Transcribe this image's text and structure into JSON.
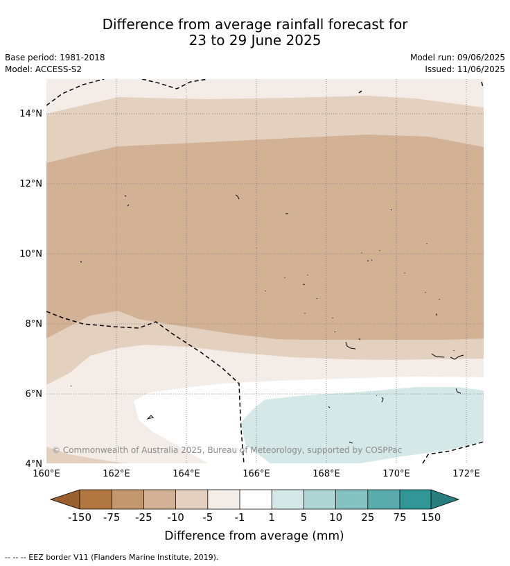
{
  "title": {
    "line1": "Difference from average rainfall forecast for",
    "line2": "23 to 29 June 2025"
  },
  "meta": {
    "base_period": "Base period: 1981-2018",
    "model": "Model: ACCESS-S2",
    "model_run": "Model run: 09/06/2025",
    "issued": "Issued: 11/06/2025"
  },
  "map": {
    "lat_labels": [
      "14°N",
      "12°N",
      "10°N",
      "8°N",
      "6°N",
      "4°N"
    ],
    "lon_labels": [
      "160°E",
      "162°E",
      "164°E",
      "166°E",
      "168°E",
      "170°E",
      "172°E"
    ],
    "copyright": "© Commonwealth of Australia 2025, Bureau of Meteorology, supported by COSPPac",
    "colors": {
      "dry_strong": "#d2b194",
      "dry_moderate": "#e3d0bf",
      "dry_weak": "#f4ede7",
      "neutral": "#ffffff",
      "wet_weak": "#d4e8e7"
    }
  },
  "colorbar": {
    "labels": [
      "-150",
      "-75",
      "-25",
      "-10",
      "-5",
      "-1",
      "1",
      "5",
      "10",
      "25",
      "75",
      "150"
    ],
    "colors": [
      "#9a5f2e",
      "#b07840",
      "#c3976e",
      "#d2b194",
      "#e3d0bf",
      "#f4ede7",
      "#ffffff",
      "#d4e8e7",
      "#acd5d4",
      "#84c1c1",
      "#5aabab",
      "#329697",
      "#2a7d7e"
    ],
    "title": "Difference from average (mm)"
  },
  "footer": {
    "legend": "--  --  -- EEZ border V11 (Flanders Marine Institute, 2019)."
  }
}
